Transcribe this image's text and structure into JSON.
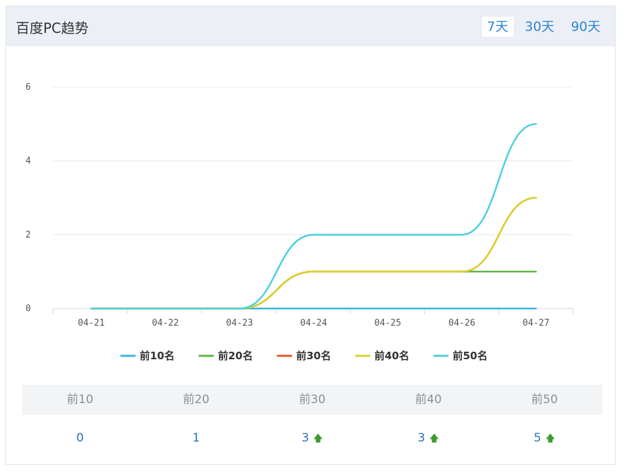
{
  "header": {
    "title": "百度PC趋势",
    "tabs": [
      {
        "label": "7天",
        "active": true
      },
      {
        "label": "30天",
        "active": false
      },
      {
        "label": "90天",
        "active": false
      }
    ]
  },
  "chart_data": {
    "type": "line",
    "x": [
      "04-21",
      "04-22",
      "04-23",
      "04-24",
      "04-25",
      "04-26",
      "04-27"
    ],
    "ylim": [
      0,
      6
    ],
    "yticks": [
      "0",
      "2",
      "4",
      "6"
    ],
    "grid": true,
    "legend_position": "bottom",
    "series": [
      {
        "name": "前10名",
        "color": "#3ab4dd",
        "values": [
          0,
          0,
          0,
          0,
          0,
          0,
          0
        ]
      },
      {
        "name": "前20名",
        "color": "#5cb745",
        "values": [
          0,
          0,
          0,
          1,
          1,
          1,
          1
        ]
      },
      {
        "name": "前30名",
        "color": "#e2582b",
        "values": [
          0,
          0,
          0,
          1,
          1,
          1,
          3
        ]
      },
      {
        "name": "前40名",
        "color": "#d9d22c",
        "values": [
          0,
          0,
          0,
          1,
          1,
          1,
          3
        ]
      },
      {
        "name": "前50名",
        "color": "#4ccfdc",
        "values": [
          0,
          0,
          0,
          2,
          2,
          2,
          5
        ]
      }
    ]
  },
  "stats": {
    "headers": [
      "前10",
      "前20",
      "前30",
      "前40",
      "前50"
    ],
    "values": [
      {
        "value": "0",
        "up": false
      },
      {
        "value": "1",
        "up": false
      },
      {
        "value": "3",
        "up": true
      },
      {
        "value": "3",
        "up": true
      },
      {
        "value": "5",
        "up": true
      }
    ],
    "up_icon": "arrow-up-icon",
    "up_color": "#3d9a2f"
  }
}
